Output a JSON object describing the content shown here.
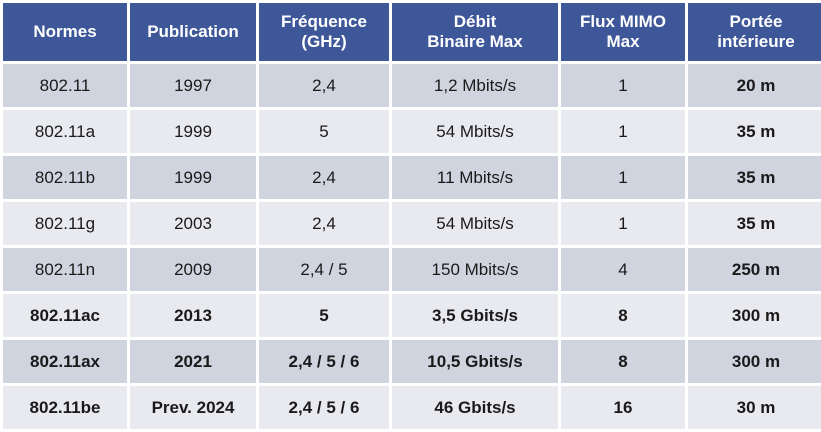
{
  "headers": {
    "normes": "Normes",
    "publication": "Publication",
    "frequence_line1": "Fréquence",
    "frequence_line2": "(GHz)",
    "debit_line1": "Débit",
    "debit_line2": "Binaire Max",
    "mimo_line1": "Flux MIMO",
    "mimo_line2": "Max",
    "portee_line1": "Portée",
    "portee_line2": "intérieure"
  },
  "rows": [
    {
      "norme": "802.11",
      "publication": "1997",
      "frequence": "2,4",
      "debit": "1,2 Mbits/s",
      "mimo": "1",
      "portee": "20 m"
    },
    {
      "norme": "802.11a",
      "publication": "1999",
      "frequence": "5",
      "debit": "54 Mbits/s",
      "mimo": "1",
      "portee": "35 m"
    },
    {
      "norme": "802.11b",
      "publication": "1999",
      "frequence": "2,4",
      "debit": "11 Mbits/s",
      "mimo": "1",
      "portee": "35 m"
    },
    {
      "norme": "802.11g",
      "publication": "2003",
      "frequence": "2,4",
      "debit": "54 Mbits/s",
      "mimo": "1",
      "portee": "35 m"
    },
    {
      "norme": "802.11n",
      "publication": "2009",
      "frequence": "2,4 / 5",
      "debit": "150 Mbits/s",
      "mimo": "4",
      "portee": "250 m"
    },
    {
      "norme": "802.11ac",
      "publication": "2013",
      "frequence": "5",
      "debit": "3,5 Gbits/s",
      "mimo": "8",
      "portee": "300 m"
    },
    {
      "norme": "802.11ax",
      "publication": "2021",
      "frequence": "2,4 / 5 / 6",
      "debit": "10,5 Gbits/s",
      "mimo": "8",
      "portee": "300 m"
    },
    {
      "norme": "802.11be",
      "publication": "Prev. 2024",
      "frequence": "2,4 / 5 / 6",
      "debit": "46 Gbits/s",
      "mimo": "16",
      "portee": "30 m"
    }
  ],
  "colors": {
    "header_bg": "#3e5799",
    "row_dark": "#d0d4df",
    "row_light": "#e9eaef"
  }
}
